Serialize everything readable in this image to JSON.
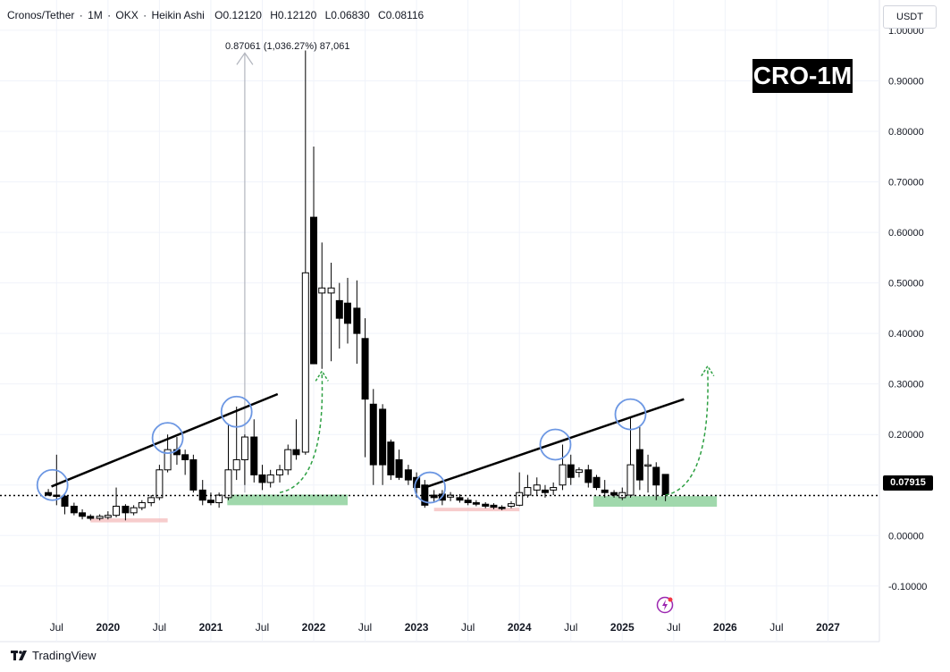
{
  "header": {
    "symbol": "Cronos/Tether",
    "interval": "1M",
    "exchange": "OKX",
    "chart_style": "Heikin Ashi",
    "open": "O0.12120",
    "high": "H0.12120",
    "low": "L0.06830",
    "close": "C0.08116",
    "sep": "·"
  },
  "currency_button": "USDT",
  "badge": "CRO-1M",
  "measure_label": "0.87061 (1,036.27%) 87,061",
  "current_price_label": "0.07915",
  "footer": {
    "brand": "TradingView",
    "icon": "tradingview-logo-icon"
  },
  "colors": {
    "candle": "#000000",
    "trendline": "#000000",
    "circle": "#6c97e3",
    "support_zone": "#8fd19e",
    "low_zone": "#f4b6b6",
    "arrow": "#2ea043",
    "measure_arrow": "#b2b5be",
    "grid": "#f0f3fa"
  },
  "chart_data": {
    "type": "candlestick",
    "y_ticks": [
      "1.00000",
      "0.90000",
      "0.80000",
      "0.70000",
      "0.60000",
      "0.50000",
      "0.40000",
      "0.30000",
      "0.20000",
      "0.10000",
      "0.00000",
      "-0.10000"
    ],
    "y_tick_values": [
      1.0,
      0.9,
      0.8,
      0.7,
      0.6,
      0.5,
      0.4,
      0.3,
      0.2,
      0.1,
      0.0,
      -0.1
    ],
    "ylim": [
      -0.21,
      1.06
    ],
    "x_ticks": [
      {
        "label": "Jul",
        "t": 2019.5
      },
      {
        "label": "2020",
        "t": 2020.0
      },
      {
        "label": "Jul",
        "t": 2020.5
      },
      {
        "label": "2021",
        "t": 2021.0
      },
      {
        "label": "Jul",
        "t": 2021.5
      },
      {
        "label": "2022",
        "t": 2022.0
      },
      {
        "label": "Jul",
        "t": 2022.5
      },
      {
        "label": "2023",
        "t": 2023.0
      },
      {
        "label": "Jul",
        "t": 2023.5
      },
      {
        "label": "2024",
        "t": 2024.0
      },
      {
        "label": "Jul",
        "t": 2024.5
      },
      {
        "label": "2025",
        "t": 2025.0
      },
      {
        "label": "Jul",
        "t": 2025.5
      },
      {
        "label": "2026",
        "t": 2026.0
      },
      {
        "label": "Jul",
        "t": 2026.5
      },
      {
        "label": "2027",
        "t": 2027.0
      }
    ],
    "xlim": [
      2018.95,
      2027.5
    ],
    "candles": [
      {
        "t": 2019.42,
        "o": 0.085,
        "h": 0.092,
        "l": 0.078,
        "c": 0.08
      },
      {
        "t": 2019.5,
        "o": 0.08,
        "h": 0.16,
        "l": 0.06,
        "c": 0.078
      },
      {
        "t": 2019.58,
        "o": 0.078,
        "h": 0.082,
        "l": 0.042,
        "c": 0.058
      },
      {
        "t": 2019.67,
        "o": 0.058,
        "h": 0.065,
        "l": 0.04,
        "c": 0.045
      },
      {
        "t": 2019.75,
        "o": 0.045,
        "h": 0.052,
        "l": 0.032,
        "c": 0.038
      },
      {
        "t": 2019.83,
        "o": 0.038,
        "h": 0.042,
        "l": 0.03,
        "c": 0.034
      },
      {
        "t": 2019.92,
        "o": 0.034,
        "h": 0.042,
        "l": 0.03,
        "c": 0.038
      },
      {
        "t": 2020.0,
        "o": 0.036,
        "h": 0.048,
        "l": 0.032,
        "c": 0.04
      },
      {
        "t": 2020.08,
        "o": 0.04,
        "h": 0.095,
        "l": 0.036,
        "c": 0.058
      },
      {
        "t": 2020.17,
        "o": 0.058,
        "h": 0.062,
        "l": 0.03,
        "c": 0.045
      },
      {
        "t": 2020.25,
        "o": 0.045,
        "h": 0.06,
        "l": 0.04,
        "c": 0.055
      },
      {
        "t": 2020.33,
        "o": 0.055,
        "h": 0.07,
        "l": 0.05,
        "c": 0.065
      },
      {
        "t": 2020.42,
        "o": 0.065,
        "h": 0.08,
        "l": 0.058,
        "c": 0.075
      },
      {
        "t": 2020.5,
        "o": 0.075,
        "h": 0.14,
        "l": 0.07,
        "c": 0.13
      },
      {
        "t": 2020.58,
        "o": 0.13,
        "h": 0.2,
        "l": 0.125,
        "c": 0.17
      },
      {
        "t": 2020.67,
        "o": 0.17,
        "h": 0.195,
        "l": 0.14,
        "c": 0.16
      },
      {
        "t": 2020.75,
        "o": 0.16,
        "h": 0.17,
        "l": 0.12,
        "c": 0.15
      },
      {
        "t": 2020.83,
        "o": 0.15,
        "h": 0.16,
        "l": 0.085,
        "c": 0.09
      },
      {
        "t": 2020.92,
        "o": 0.09,
        "h": 0.11,
        "l": 0.06,
        "c": 0.07
      },
      {
        "t": 2021.0,
        "o": 0.07,
        "h": 0.085,
        "l": 0.06,
        "c": 0.065
      },
      {
        "t": 2021.08,
        "o": 0.065,
        "h": 0.085,
        "l": 0.055,
        "c": 0.08
      },
      {
        "t": 2021.17,
        "o": 0.075,
        "h": 0.22,
        "l": 0.07,
        "c": 0.13
      },
      {
        "t": 2021.25,
        "o": 0.13,
        "h": 0.255,
        "l": 0.11,
        "c": 0.15
      },
      {
        "t": 2021.33,
        "o": 0.15,
        "h": 0.2,
        "l": 0.1,
        "c": 0.195
      },
      {
        "t": 2021.42,
        "o": 0.195,
        "h": 0.23,
        "l": 0.105,
        "c": 0.12
      },
      {
        "t": 2021.5,
        "o": 0.12,
        "h": 0.14,
        "l": 0.09,
        "c": 0.105
      },
      {
        "t": 2021.58,
        "o": 0.105,
        "h": 0.13,
        "l": 0.095,
        "c": 0.12
      },
      {
        "t": 2021.67,
        "o": 0.12,
        "h": 0.14,
        "l": 0.105,
        "c": 0.13
      },
      {
        "t": 2021.75,
        "o": 0.13,
        "h": 0.18,
        "l": 0.12,
        "c": 0.17
      },
      {
        "t": 2021.83,
        "o": 0.17,
        "h": 0.23,
        "l": 0.15,
        "c": 0.16
      },
      {
        "t": 2021.92,
        "o": 0.165,
        "h": 0.96,
        "l": 0.16,
        "c": 0.52
      },
      {
        "t": 2022.0,
        "o": 0.63,
        "h": 0.77,
        "l": 0.34,
        "c": 0.34
      },
      {
        "t": 2022.08,
        "o": 0.48,
        "h": 0.58,
        "l": 0.33,
        "c": 0.49
      },
      {
        "t": 2022.17,
        "o": 0.48,
        "h": 0.54,
        "l": 0.345,
        "c": 0.49
      },
      {
        "t": 2022.25,
        "o": 0.465,
        "h": 0.5,
        "l": 0.37,
        "c": 0.43
      },
      {
        "t": 2022.33,
        "o": 0.46,
        "h": 0.51,
        "l": 0.38,
        "c": 0.42
      },
      {
        "t": 2022.42,
        "o": 0.45,
        "h": 0.505,
        "l": 0.34,
        "c": 0.4
      },
      {
        "t": 2022.5,
        "o": 0.39,
        "h": 0.43,
        "l": 0.155,
        "c": 0.27
      },
      {
        "t": 2022.58,
        "o": 0.26,
        "h": 0.29,
        "l": 0.1,
        "c": 0.14
      },
      {
        "t": 2022.67,
        "o": 0.25,
        "h": 0.26,
        "l": 0.1,
        "c": 0.14
      },
      {
        "t": 2022.75,
        "o": 0.185,
        "h": 0.19,
        "l": 0.11,
        "c": 0.12
      },
      {
        "t": 2022.83,
        "o": 0.15,
        "h": 0.17,
        "l": 0.11,
        "c": 0.115
      },
      {
        "t": 2022.92,
        "o": 0.13,
        "h": 0.14,
        "l": 0.1,
        "c": 0.11
      },
      {
        "t": 2023.0,
        "o": 0.115,
        "h": 0.125,
        "l": 0.075,
        "c": 0.095
      },
      {
        "t": 2023.08,
        "o": 0.1,
        "h": 0.11,
        "l": 0.055,
        "c": 0.06
      },
      {
        "t": 2023.17,
        "o": 0.08,
        "h": 0.09,
        "l": 0.065,
        "c": 0.075
      },
      {
        "t": 2023.25,
        "o": 0.082,
        "h": 0.09,
        "l": 0.06,
        "c": 0.07
      },
      {
        "t": 2023.33,
        "o": 0.076,
        "h": 0.086,
        "l": 0.068,
        "c": 0.08
      },
      {
        "t": 2023.42,
        "o": 0.075,
        "h": 0.082,
        "l": 0.065,
        "c": 0.07
      },
      {
        "t": 2023.5,
        "o": 0.07,
        "h": 0.075,
        "l": 0.06,
        "c": 0.065
      },
      {
        "t": 2023.58,
        "o": 0.065,
        "h": 0.07,
        "l": 0.058,
        "c": 0.062
      },
      {
        "t": 2023.67,
        "o": 0.062,
        "h": 0.066,
        "l": 0.054,
        "c": 0.058
      },
      {
        "t": 2023.75,
        "o": 0.06,
        "h": 0.064,
        "l": 0.052,
        "c": 0.056
      },
      {
        "t": 2023.83,
        "o": 0.056,
        "h": 0.06,
        "l": 0.05,
        "c": 0.055
      },
      {
        "t": 2023.92,
        "o": 0.058,
        "h": 0.068,
        "l": 0.054,
        "c": 0.063
      },
      {
        "t": 2024.0,
        "o": 0.06,
        "h": 0.125,
        "l": 0.058,
        "c": 0.085
      },
      {
        "t": 2024.08,
        "o": 0.08,
        "h": 0.12,
        "l": 0.075,
        "c": 0.095
      },
      {
        "t": 2024.17,
        "o": 0.09,
        "h": 0.115,
        "l": 0.08,
        "c": 0.1
      },
      {
        "t": 2024.25,
        "o": 0.09,
        "h": 0.1,
        "l": 0.075,
        "c": 0.085
      },
      {
        "t": 2024.33,
        "o": 0.09,
        "h": 0.105,
        "l": 0.08,
        "c": 0.095
      },
      {
        "t": 2024.42,
        "o": 0.1,
        "h": 0.18,
        "l": 0.09,
        "c": 0.14
      },
      {
        "t": 2024.5,
        "o": 0.14,
        "h": 0.16,
        "l": 0.1,
        "c": 0.115
      },
      {
        "t": 2024.58,
        "o": 0.125,
        "h": 0.135,
        "l": 0.115,
        "c": 0.13
      },
      {
        "t": 2024.67,
        "o": 0.13,
        "h": 0.14,
        "l": 0.095,
        "c": 0.105
      },
      {
        "t": 2024.75,
        "o": 0.115,
        "h": 0.12,
        "l": 0.09,
        "c": 0.095
      },
      {
        "t": 2024.83,
        "o": 0.09,
        "h": 0.11,
        "l": 0.075,
        "c": 0.085
      },
      {
        "t": 2024.92,
        "o": 0.085,
        "h": 0.09,
        "l": 0.075,
        "c": 0.08
      },
      {
        "t": 2025.0,
        "o": 0.075,
        "h": 0.095,
        "l": 0.07,
        "c": 0.085
      },
      {
        "t": 2025.08,
        "o": 0.08,
        "h": 0.235,
        "l": 0.075,
        "c": 0.14
      },
      {
        "t": 2025.17,
        "o": 0.17,
        "h": 0.215,
        "l": 0.09,
        "c": 0.11
      },
      {
        "t": 2025.25,
        "o": 0.14,
        "h": 0.16,
        "l": 0.085,
        "c": 0.14
      },
      {
        "t": 2025.33,
        "o": 0.135,
        "h": 0.145,
        "l": 0.07,
        "c": 0.1
      },
      {
        "t": 2025.42,
        "o": 0.121,
        "h": 0.121,
        "l": 0.068,
        "c": 0.081
      }
    ],
    "trendlines": [
      {
        "t1": 2019.45,
        "y1": 0.097,
        "t2": 2021.65,
        "y2": 0.28
      },
      {
        "t1": 2023.08,
        "y1": 0.095,
        "t2": 2025.6,
        "y2": 0.27
      }
    ],
    "circles": [
      {
        "t": 2019.46,
        "y": 0.1
      },
      {
        "t": 2020.58,
        "y": 0.193
      },
      {
        "t": 2021.25,
        "y": 0.245
      },
      {
        "t": 2023.13,
        "y": 0.095
      },
      {
        "t": 2024.35,
        "y": 0.18
      },
      {
        "t": 2025.08,
        "y": 0.24
      }
    ],
    "zones": [
      {
        "t1": 2021.16,
        "t2": 2022.33,
        "y1": 0.06,
        "y2": 0.081,
        "kind": "support"
      },
      {
        "t1": 2024.72,
        "t2": 2025.92,
        "y1": 0.057,
        "y2": 0.078,
        "kind": "support"
      },
      {
        "t1": 2019.83,
        "t2": 2020.58,
        "y1": 0.026,
        "y2": 0.034,
        "kind": "low"
      },
      {
        "t1": 2023.17,
        "t2": 2024.0,
        "y1": 0.048,
        "y2": 0.055,
        "kind": "low"
      }
    ],
    "projections": [
      {
        "from_t": 2021.67,
        "from_y": 0.085,
        "to_t": 2022.08,
        "to_y": 0.32
      },
      {
        "from_t": 2025.42,
        "from_y": 0.08,
        "to_t": 2025.83,
        "to_y": 0.33
      }
    ],
    "measure_arrow": {
      "t": 2021.33,
      "y_from": 0.085,
      "y_to": 0.955
    },
    "current_price": 0.07915
  }
}
